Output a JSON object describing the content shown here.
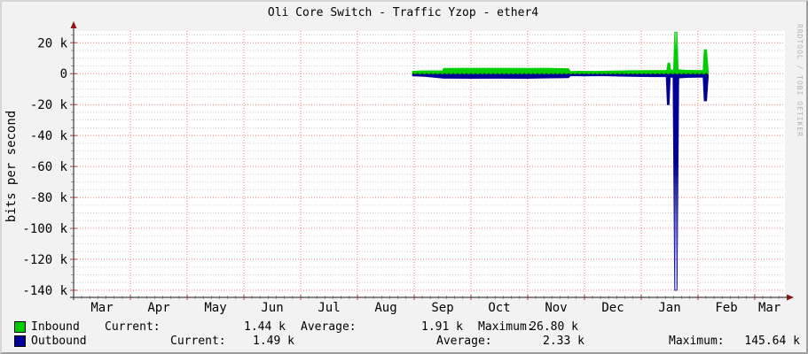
{
  "chart_data": {
    "type": "area",
    "title": "Oli Core Switch - Traffic Yzop - ether4",
    "ylabel": "bits per second",
    "watermark": "RRDTOOL / TOBI OETIKER",
    "x_tick_labels": [
      "Mar",
      "Apr",
      "May",
      "Jun",
      "Jul",
      "Aug",
      "Sep",
      "Oct",
      "Nov",
      "Dec",
      "Jan",
      "Feb",
      "Mar"
    ],
    "y_tick_values": [
      20000,
      0,
      -20000,
      -40000,
      -60000,
      -80000,
      -100000,
      -120000,
      -140000
    ],
    "y_tick_labels": [
      "20 k",
      "0",
      "-20 k",
      "-40 k",
      "-60 k",
      "-80 k",
      "-100 k",
      "-120 k",
      "-140 k"
    ],
    "ylim": [
      -144600,
      27600
    ],
    "grid": {
      "major_step": 20000,
      "minor_step": 5000,
      "major_color": "#f08080",
      "minor_color": "#cfcfcf",
      "grid_on": true
    },
    "axis_color": "#444444",
    "arrow_color": "#8c1515",
    "legend_position": "bottom",
    "x_axis_unit": "months",
    "x_total_months": 12.52,
    "series": [
      {
        "name": "Inbound",
        "color": "#00cc00",
        "points": [
          [
            5.97,
            1500
          ],
          [
            6.1,
            1800
          ],
          [
            6.5,
            1900
          ],
          [
            6.52,
            3400
          ],
          [
            7.0,
            3500
          ],
          [
            7.5,
            3500
          ],
          [
            8.0,
            3400
          ],
          [
            8.3,
            3500
          ],
          [
            8.72,
            3200
          ],
          [
            8.75,
            1400
          ],
          [
            8.9,
            1600
          ],
          [
            9.2,
            1500
          ],
          [
            9.5,
            1700
          ],
          [
            9.8,
            1900
          ],
          [
            10.0,
            2000
          ],
          [
            10.3,
            2100
          ],
          [
            10.45,
            2100
          ],
          [
            10.47,
            6800
          ],
          [
            10.5,
            6800
          ],
          [
            10.52,
            2100
          ],
          [
            10.57,
            2500
          ],
          [
            10.59,
            26800
          ],
          [
            10.63,
            26800
          ],
          [
            10.65,
            2500
          ],
          [
            10.8,
            2200
          ],
          [
            11.0,
            2100
          ],
          [
            11.09,
            2100
          ],
          [
            11.11,
            15500
          ],
          [
            11.15,
            15500
          ],
          [
            11.18,
            1800
          ]
        ]
      },
      {
        "name": "Outbound",
        "color": "#000099",
        "points": [
          [
            5.97,
            -1400
          ],
          [
            6.2,
            -1800
          ],
          [
            6.52,
            -2900
          ],
          [
            7.0,
            -3000
          ],
          [
            7.5,
            -2900
          ],
          [
            8.0,
            -3000
          ],
          [
            8.3,
            -2800
          ],
          [
            8.72,
            -2600
          ],
          [
            8.75,
            -1300
          ],
          [
            9.0,
            -1400
          ],
          [
            9.3,
            -1300
          ],
          [
            9.6,
            -1600
          ],
          [
            9.9,
            -1800
          ],
          [
            10.2,
            -1900
          ],
          [
            10.44,
            -1900
          ],
          [
            10.46,
            -20000
          ],
          [
            10.49,
            -20000
          ],
          [
            10.51,
            -2200
          ],
          [
            10.56,
            -2400
          ],
          [
            10.59,
            -140000
          ],
          [
            10.63,
            -140000
          ],
          [
            10.66,
            -2800
          ],
          [
            10.8,
            -2400
          ],
          [
            11.0,
            -2300
          ],
          [
            11.09,
            -2300
          ],
          [
            11.11,
            -17500
          ],
          [
            11.15,
            -17500
          ],
          [
            11.18,
            -2000
          ]
        ]
      }
    ]
  },
  "legend": {
    "rows": [
      {
        "name": "Inbound",
        "color": "#00cc00",
        "stats": [
          {
            "label": "Current:",
            "value": "1.44 k"
          },
          {
            "label": "Average:",
            "value": "1.91 k"
          },
          {
            "label": "Maximum:",
            "value": "26.80 k"
          }
        ]
      },
      {
        "name": "Outbound",
        "color": "#000099",
        "stats": [
          {
            "label": "Current:",
            "value": "1.49 k"
          },
          {
            "label": "Average:",
            "value": "2.33 k"
          },
          {
            "label": "Maximum:",
            "value": "145.64 k"
          }
        ]
      }
    ]
  }
}
